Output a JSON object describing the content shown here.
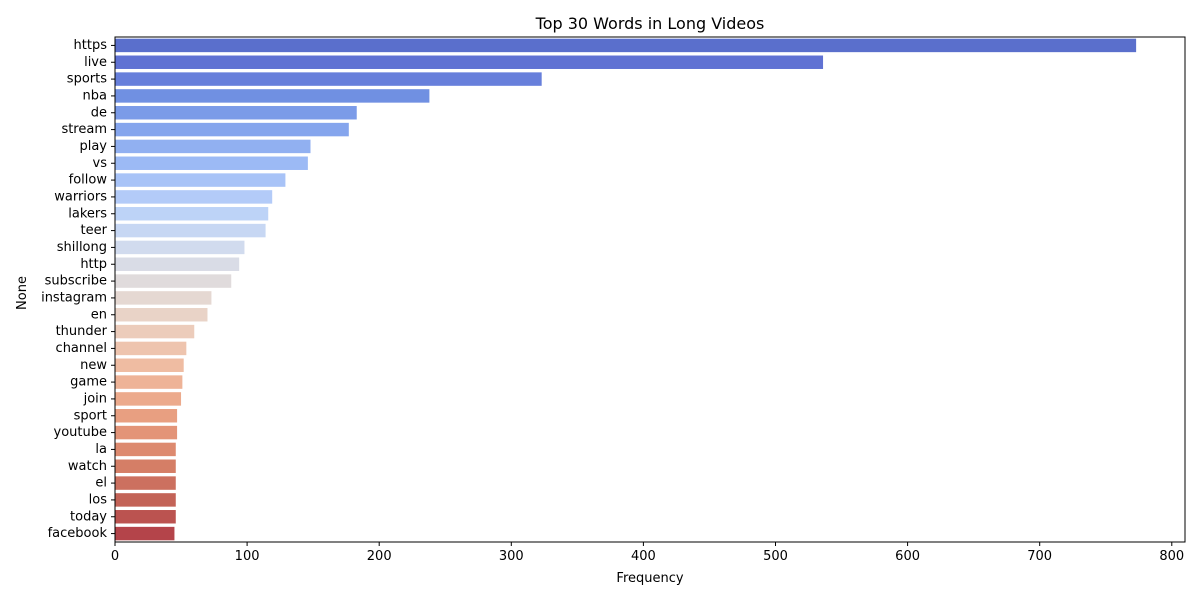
{
  "chart_data": {
    "type": "bar",
    "orientation": "horizontal",
    "title": "Top 30 Words in Long Videos",
    "xlabel": "Frequency",
    "ylabel": "None",
    "xlim": [
      0,
      810
    ],
    "xticks": [
      0,
      100,
      200,
      300,
      400,
      500,
      600,
      700,
      800
    ],
    "grid": false,
    "legend": "none",
    "palette": "coolwarm",
    "categories": [
      "https",
      "live",
      "sports",
      "nba",
      "de",
      "stream",
      "play",
      "vs",
      "follow",
      "warriors",
      "lakers",
      "teer",
      "shillong",
      "http",
      "subscribe",
      "instagram",
      "en",
      "thunder",
      "channel",
      "new",
      "game",
      "join",
      "sport",
      "youtube",
      "la",
      "watch",
      "el",
      "los",
      "today",
      "facebook"
    ],
    "values": [
      773,
      536,
      323,
      238,
      183,
      177,
      148,
      146,
      129,
      119,
      116,
      114,
      98,
      94,
      88,
      73,
      70,
      60,
      54,
      52,
      51,
      50,
      47,
      47,
      46,
      46,
      46,
      46,
      46,
      45
    ],
    "colors": [
      "#5a6fcc",
      "#6072d3",
      "#677fdb",
      "#7090e2",
      "#7b9be8",
      "#85a5ed",
      "#91b0f1",
      "#9cbaf5",
      "#a8c3f7",
      "#b3cbf8",
      "#bdd3f7",
      "#c7d7f3",
      "#d1dbee",
      "#d9dce6",
      "#e0dbdc",
      "#e5d8d2",
      "#e9d3c7",
      "#ecccbb",
      "#eec4ae",
      "#efbca2",
      "#eeb397",
      "#ecaa8c",
      "#e89f81",
      "#e39478",
      "#dd8a6f",
      "#d57e66",
      "#cc705f",
      "#c36357",
      "#bb5350",
      "#b4444a"
    ]
  }
}
